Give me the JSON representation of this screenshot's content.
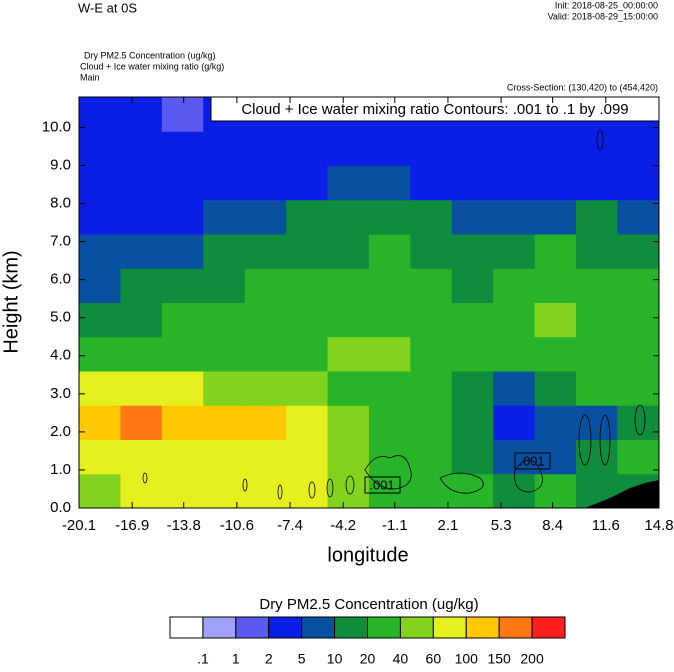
{
  "chart_data": {
    "type": "contourf",
    "title": "W-E at 0S",
    "init": "Init: 2018-08-25_00:00:00",
    "valid": "Valid: 2018-08-29_15:00:00",
    "field_labels": [
      "Dry PM2.5 Concentration   (ug/kg)",
      "Cloud + Ice water mixing ratio   (g/kg)",
      "Main"
    ],
    "cross_section": "Cross-Section: (130,420) to (454,420)",
    "contour_info": "Cloud + Ice water mixing ratio Contours: .001 to .1 by .099",
    "contour_labels": [
      ".001",
      ".001"
    ],
    "xlabel": "longitude",
    "ylabel": "Height (km)",
    "xlim": [
      -20.1,
      14.8
    ],
    "ylim": [
      0,
      10.8
    ],
    "xticks": [
      -20.1,
      -16.9,
      -13.8,
      -10.6,
      -7.4,
      -4.2,
      -1.1,
      2.1,
      5.3,
      8.4,
      11.6,
      14.8
    ],
    "yticks": [
      {
        "value": 0,
        "label": "0.0"
      },
      {
        "value": 1,
        "label": "1.0"
      },
      {
        "value": 2,
        "label": "2.0"
      },
      {
        "value": 3,
        "label": "3.0"
      },
      {
        "value": 4,
        "label": "4.0"
      },
      {
        "value": 5,
        "label": "5.0"
      },
      {
        "value": 6,
        "label": "6.0"
      },
      {
        "value": 7,
        "label": "7.0"
      },
      {
        "value": 8,
        "label": "8.0"
      },
      {
        "value": 9,
        "label": "9.0"
      },
      {
        "value": 10,
        "label": "10.0"
      }
    ],
    "x": [
      -18.85,
      -16.36,
      -13.87,
      -11.38,
      -8.88,
      -6.39,
      -3.9,
      -1.41,
      1.08,
      3.57,
      6.07,
      8.56,
      11.05,
      13.55
    ],
    "y": [
      0.45,
      1.35,
      2.25,
      3.15,
      4.05,
      4.95,
      5.85,
      6.75,
      7.65,
      8.55,
      9.45,
      10.35
    ],
    "z": [
      [
        40,
        80,
        80,
        80,
        80,
        70,
        50,
        30,
        25,
        25,
        15,
        20,
        15,
        10
      ],
      [
        80,
        90,
        90,
        90,
        80,
        70,
        40,
        30,
        25,
        15,
        5,
        8,
        15,
        25
      ],
      [
        120,
        160,
        130,
        120,
        110,
        90,
        40,
        25,
        20,
        12,
        4,
        5,
        8,
        15
      ],
      [
        70,
        80,
        65,
        50,
        50,
        45,
        30,
        25,
        20,
        15,
        8,
        10,
        20,
        30
      ],
      [
        30,
        35,
        30,
        25,
        30,
        35,
        45,
        40,
        30,
        25,
        30,
        35,
        30,
        25
      ],
      [
        15,
        18,
        20,
        20,
        20,
        25,
        30,
        30,
        25,
        25,
        35,
        40,
        25,
        30
      ],
      [
        8,
        12,
        15,
        15,
        20,
        20,
        22,
        25,
        22,
        15,
        25,
        35,
        25,
        20
      ],
      [
        5,
        6,
        8,
        10,
        12,
        15,
        18,
        20,
        15,
        12,
        10,
        25,
        15,
        12
      ],
      [
        3,
        4,
        4,
        5,
        8,
        10,
        12,
        12,
        10,
        8,
        7,
        8,
        10,
        8
      ],
      [
        2,
        3,
        3,
        3,
        4,
        4,
        5,
        5,
        4,
        4,
        4,
        4,
        4,
        4
      ],
      [
        3,
        3,
        3,
        3,
        3,
        3,
        3,
        3,
        3,
        3,
        3,
        4,
        3,
        3
      ],
      [
        2,
        2,
        1.5,
        2,
        2,
        3,
        3,
        3,
        3,
        2,
        2,
        2,
        2,
        2
      ]
    ],
    "colorbar_title": "Dry PM2.5 Concentration  (ug/kg)",
    "levels": [
      {
        "value": 0.1,
        "label": ".1"
      },
      1,
      2,
      5,
      10,
      20,
      40,
      60,
      100,
      150,
      200
    ],
    "colors": [
      "#ffffff",
      "#a0a0f8",
      "#5a5af0",
      "#0a1ee6",
      "#0a50a0",
      "#0f8c3c",
      "#28b428",
      "#82d21e",
      "#e6f01e",
      "#ffc800",
      "#ff7814",
      "#ff1e1e"
    ]
  }
}
